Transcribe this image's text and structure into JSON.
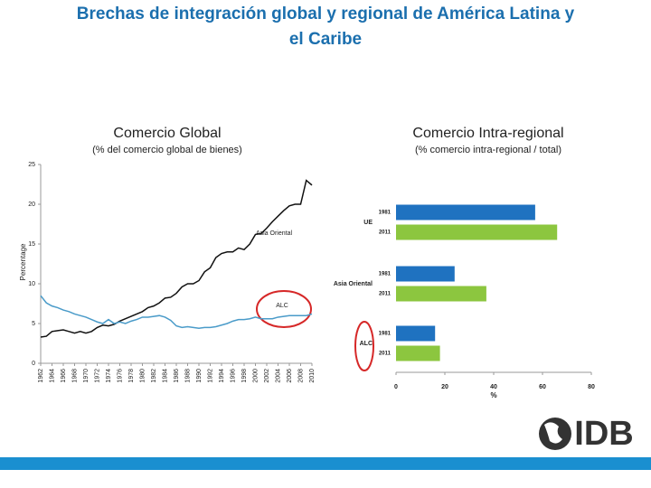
{
  "title": "Brechas de integración global y regional de América Latina y el Caribe",
  "logo": "IDB",
  "chart_data": [
    {
      "type": "line",
      "title": "Comercio Global",
      "subtitle": "(% del comercio global de bienes)",
      "y_label": "Percentage",
      "x": [
        1962,
        1963,
        1964,
        1965,
        1966,
        1967,
        1968,
        1969,
        1970,
        1971,
        1972,
        1973,
        1974,
        1975,
        1976,
        1977,
        1978,
        1979,
        1980,
        1981,
        1982,
        1983,
        1984,
        1985,
        1986,
        1987,
        1988,
        1989,
        1990,
        1991,
        1992,
        1993,
        1994,
        1995,
        1996,
        1997,
        1998,
        1999,
        2000,
        2001,
        2002,
        2003,
        2004,
        2005,
        2006,
        2007,
        2008,
        2009,
        2010
      ],
      "series": [
        {
          "name": "Asia Oriental",
          "color": "#111111",
          "values": [
            3.3,
            3.4,
            4.0,
            4.1,
            4.2,
            4.0,
            3.8,
            4.0,
            3.8,
            4.0,
            4.5,
            4.8,
            4.7,
            4.9,
            5.3,
            5.6,
            5.9,
            6.2,
            6.5,
            7.0,
            7.2,
            7.6,
            8.2,
            8.3,
            8.8,
            9.6,
            10.0,
            10.0,
            10.4,
            11.5,
            12.0,
            13.3,
            13.8,
            14.0,
            14.0,
            14.5,
            14.3,
            15.0,
            16.2,
            16.3,
            17.0,
            17.8,
            18.5,
            19.2,
            19.8,
            20.0,
            20.0,
            23.0,
            22.4
          ]
        },
        {
          "name": "ALC",
          "color": "#4a9bc9",
          "values": [
            8.5,
            7.6,
            7.2,
            7.0,
            6.7,
            6.5,
            6.2,
            6.0,
            5.8,
            5.5,
            5.2,
            5.0,
            5.5,
            5.0,
            5.2,
            5.0,
            5.3,
            5.5,
            5.8,
            5.8,
            5.9,
            6.0,
            5.8,
            5.4,
            4.7,
            4.5,
            4.6,
            4.5,
            4.4,
            4.5,
            4.5,
            4.6,
            4.8,
            5.0,
            5.3,
            5.5,
            5.5,
            5.6,
            5.8,
            5.6,
            5.6,
            5.6,
            5.8,
            5.9,
            6.0,
            6.0,
            6.0,
            6.0,
            6.2
          ]
        }
      ],
      "xlim": [
        1962,
        2010
      ],
      "xticks": [
        1962,
        1964,
        1966,
        1968,
        1970,
        1972,
        1974,
        1976,
        1978,
        1980,
        1982,
        1984,
        1986,
        1988,
        1990,
        1992,
        1994,
        1996,
        1998,
        2000,
        2002,
        2004,
        2006,
        2008,
        2010
      ],
      "ylim": [
        0,
        25
      ],
      "yticks": [
        0,
        5,
        10,
        15,
        20,
        25
      ]
    },
    {
      "type": "bar",
      "orientation": "horizontal",
      "title": "Comercio Intra-regional",
      "subtitle": "(% comercio intra-regional / total)",
      "x_label": "%",
      "categories": [
        "UE",
        "Asia Oriental",
        "ALC"
      ],
      "series": [
        {
          "name": "1981",
          "color": "#1f72c0",
          "values": [
            57,
            24,
            16
          ]
        },
        {
          "name": "2011",
          "color": "#8cc63f",
          "values": [
            66,
            37,
            18
          ]
        }
      ],
      "xlim": [
        0,
        80
      ],
      "xticks": [
        0,
        20,
        40,
        60,
        80
      ]
    }
  ]
}
